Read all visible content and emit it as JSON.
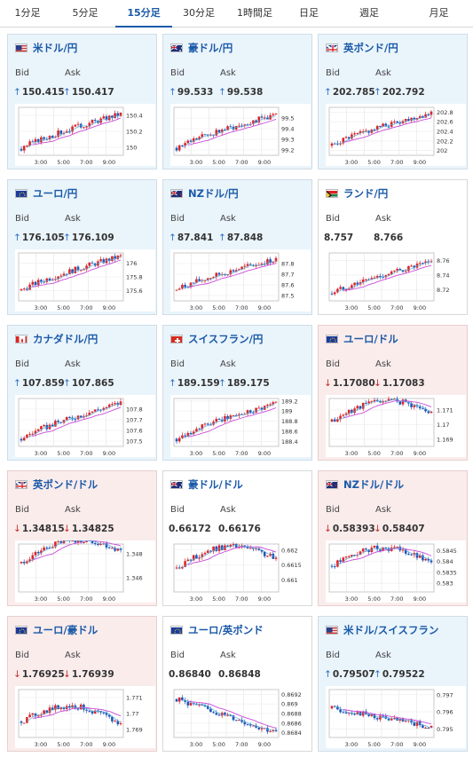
{
  "tabs": [
    {
      "label": "1分足",
      "active": false
    },
    {
      "label": "5分足",
      "active": false
    },
    {
      "label": "15分足",
      "active": true
    },
    {
      "label": "30分足",
      "active": false
    },
    {
      "label": "1時間足",
      "active": false
    },
    {
      "label": "日足",
      "active": false
    },
    {
      "label": "週足",
      "active": false
    },
    {
      "label": "月足",
      "active": false
    }
  ],
  "labels": {
    "bid": "Bid",
    "ask": "Ask"
  },
  "colors": {
    "accent": "#1a5aa8",
    "up_card": "#eaf4fb",
    "down_card": "#fbecec",
    "candle_up": "#d9262a",
    "candle_down": "#1c58b8",
    "ma": "#c94bd9",
    "ma_short": "#5fa8d8"
  },
  "cards": [
    {
      "pair": "米ドル/円",
      "flag": "us-jp-flag-icon",
      "trend": "up",
      "bid": "150.415",
      "ask": "150.417",
      "bid_dir": "up",
      "ask_dir": "up",
      "chart_data": {
        "type": "candlestick",
        "x_ticks": [
          "3:00",
          "5:00",
          "7:00",
          "9:00"
        ],
        "y_ticks": [
          "150.4",
          "150.2",
          "150"
        ],
        "ylim": [
          149.9,
          150.5
        ],
        "start": 149.98,
        "end": 150.42,
        "shape": "rise"
      }
    },
    {
      "pair": "豪ドル/円",
      "flag": "au-jp-flag-icon",
      "trend": "up",
      "bid": "99.533",
      "ask": "99.538",
      "bid_dir": "up",
      "ask_dir": "up",
      "chart_data": {
        "type": "candlestick",
        "x_ticks": [
          "3:00",
          "5:00",
          "7:00",
          "9:00"
        ],
        "y_ticks": [
          "99.5",
          "99.4",
          "99.3",
          "99.2"
        ],
        "ylim": [
          99.15,
          99.6
        ],
        "start": 99.22,
        "end": 99.53,
        "shape": "rise"
      }
    },
    {
      "pair": "英ポンド/円",
      "flag": "gb-jp-flag-icon",
      "trend": "up",
      "bid": "202.785",
      "ask": "202.792",
      "bid_dir": "up",
      "ask_dir": "up",
      "chart_data": {
        "type": "candlestick",
        "x_ticks": [
          "3:00",
          "5:00",
          "7:00",
          "9:00"
        ],
        "y_ticks": [
          "202.8",
          "202.6",
          "202.4",
          "202.2",
          "202"
        ],
        "ylim": [
          201.9,
          202.9
        ],
        "start": 202.1,
        "end": 202.79,
        "shape": "rise"
      }
    },
    {
      "pair": "ユーロ/円",
      "flag": "eu-jp-flag-icon",
      "trend": "up",
      "bid": "176.105",
      "ask": "176.109",
      "bid_dir": "up",
      "ask_dir": "up",
      "chart_data": {
        "type": "candlestick",
        "x_ticks": [
          "3:00",
          "5:00",
          "7:00",
          "9:00"
        ],
        "y_ticks": [
          "176",
          "175.8",
          "175.6"
        ],
        "ylim": [
          175.45,
          176.15
        ],
        "start": 175.6,
        "end": 176.1,
        "shape": "rise"
      }
    },
    {
      "pair": "NZドル/円",
      "flag": "nz-jp-flag-icon",
      "trend": "up",
      "bid": "87.841",
      "ask": "87.848",
      "bid_dir": "up",
      "ask_dir": "up",
      "chart_data": {
        "type": "candlestick",
        "x_ticks": [
          "3:00",
          "5:00",
          "7:00",
          "9:00"
        ],
        "y_ticks": [
          "87.8",
          "87.7",
          "87.6",
          "87.5"
        ],
        "ylim": [
          87.45,
          87.9
        ],
        "start": 87.55,
        "end": 87.84,
        "shape": "rise"
      }
    },
    {
      "pair": "ランド/円",
      "flag": "za-jp-flag-icon",
      "trend": "flat",
      "bid": "8.757",
      "ask": "8.766",
      "bid_dir": "none",
      "ask_dir": "none",
      "chart_data": {
        "type": "candlestick",
        "x_ticks": [
          "3:00",
          "5:00",
          "7:00",
          "9:00"
        ],
        "y_ticks": [
          "8.76",
          "8.74",
          "8.72"
        ],
        "ylim": [
          8.705,
          8.77
        ],
        "start": 8.715,
        "end": 8.757,
        "shape": "rise"
      }
    },
    {
      "pair": "カナダドル/円",
      "flag": "ca-jp-flag-icon",
      "trend": "up",
      "bid": "107.859",
      "ask": "107.865",
      "bid_dir": "up",
      "ask_dir": "up",
      "chart_data": {
        "type": "candlestick",
        "x_ticks": [
          "3:00",
          "5:00",
          "7:00",
          "9:00"
        ],
        "y_ticks": [
          "107.8",
          "107.7",
          "107.6",
          "107.5"
        ],
        "ylim": [
          107.45,
          107.9
        ],
        "start": 107.52,
        "end": 107.86,
        "shape": "rise"
      }
    },
    {
      "pair": "スイスフラン/円",
      "flag": "ch-jp-flag-icon",
      "trend": "up",
      "bid": "189.159",
      "ask": "189.175",
      "bid_dir": "up",
      "ask_dir": "up",
      "chart_data": {
        "type": "candlestick",
        "x_ticks": [
          "3:00",
          "5:00",
          "7:00",
          "9:00"
        ],
        "y_ticks": [
          "189.2",
          "189",
          "188.8",
          "188.6",
          "188.4"
        ],
        "ylim": [
          188.3,
          189.25
        ],
        "start": 188.45,
        "end": 189.16,
        "shape": "rise"
      }
    },
    {
      "pair": "ユーロ/ドル",
      "flag": "eu-us-flag-icon",
      "trend": "down",
      "bid": "1.17080",
      "ask": "1.17083",
      "bid_dir": "down",
      "ask_dir": "down",
      "chart_data": {
        "type": "candlestick",
        "x_ticks": [
          "3:00",
          "5:00",
          "7:00",
          "9:00"
        ],
        "y_ticks": [
          "1.171",
          "1.17",
          "1.169"
        ],
        "ylim": [
          1.1685,
          1.1718
        ],
        "start": 1.1702,
        "end": 1.1708,
        "shape": "peak-flat"
      }
    },
    {
      "pair": "英ポンド/ドル",
      "flag": "gb-us-flag-icon",
      "trend": "down",
      "bid": "1.34815",
      "ask": "1.34825",
      "bid_dir": "down",
      "ask_dir": "down",
      "chart_data": {
        "type": "candlestick",
        "x_ticks": [
          "3:00",
          "5:00",
          "7:00",
          "9:00"
        ],
        "y_ticks": [
          "1.348",
          "1.346"
        ],
        "ylim": [
          1.3448,
          1.3488
        ],
        "start": 1.3472,
        "end": 1.3482,
        "shape": "peak-flat"
      }
    },
    {
      "pair": "豪ドル/ドル",
      "flag": "au-us-flag-icon",
      "trend": "flat",
      "bid": "0.66172",
      "ask": "0.66176",
      "bid_dir": "none",
      "ask_dir": "none",
      "chart_data": {
        "type": "candlestick",
        "x_ticks": [
          "3:00",
          "5:00",
          "7:00",
          "9:00"
        ],
        "y_ticks": [
          "0.662",
          "0.6615",
          "0.661"
        ],
        "ylim": [
          0.6606,
          0.6622
        ],
        "start": 0.6614,
        "end": 0.6617,
        "shape": "peak-flat"
      }
    },
    {
      "pair": "NZドル/ドル",
      "flag": "nz-us-flag-icon",
      "trend": "down",
      "bid": "0.58393",
      "ask": "0.58407",
      "bid_dir": "down",
      "ask_dir": "down",
      "chart_data": {
        "type": "candlestick",
        "x_ticks": [
          "3:00",
          "5:00",
          "7:00",
          "9:00"
        ],
        "y_ticks": [
          "0.5845",
          "0.584",
          "0.5835",
          "0.583"
        ],
        "ylim": [
          0.5826,
          0.5848
        ],
        "start": 0.5838,
        "end": 0.5839,
        "shape": "peak-flat"
      }
    },
    {
      "pair": "ユーロ/豪ドル",
      "flag": "eu-au-flag-icon",
      "trend": "down",
      "bid": "1.76925",
      "ask": "1.76939",
      "bid_dir": "down",
      "ask_dir": "down",
      "chart_data": {
        "type": "candlestick",
        "x_ticks": [
          "3:00",
          "5:00",
          "7:00",
          "9:00"
        ],
        "y_ticks": [
          "1.771",
          "1.77",
          "1.769"
        ],
        "ylim": [
          1.7685,
          1.7715
        ],
        "start": 1.7695,
        "end": 1.7693,
        "shape": "peak-flat"
      }
    },
    {
      "pair": "ユーロ/英ポンド",
      "flag": "eu-gb-flag-icon",
      "trend": "flat",
      "bid": "0.86840",
      "ask": "0.86848",
      "bid_dir": "none",
      "ask_dir": "none",
      "chart_data": {
        "type": "candlestick",
        "x_ticks": [
          "3:00",
          "5:00",
          "7:00",
          "9:00"
        ],
        "y_ticks": [
          "0.8692",
          "0.869",
          "0.8688",
          "0.8686",
          "0.8684"
        ],
        "ylim": [
          0.8683,
          0.8693
        ],
        "start": 0.8691,
        "end": 0.8684,
        "shape": "fall"
      }
    },
    {
      "pair": "米ドル/スイスフラン",
      "flag": "us-ch-flag-icon",
      "trend": "up",
      "bid": "0.79507",
      "ask": "0.79522",
      "bid_dir": "up",
      "ask_dir": "up",
      "chart_data": {
        "type": "candlestick",
        "x_ticks": [
          "3:00",
          "5:00",
          "7:00",
          "9:00"
        ],
        "y_ticks": [
          "0.797",
          "0.796",
          "0.795"
        ],
        "ylim": [
          0.7945,
          0.7973
        ],
        "start": 0.7962,
        "end": 0.7951,
        "shape": "fall"
      }
    }
  ]
}
